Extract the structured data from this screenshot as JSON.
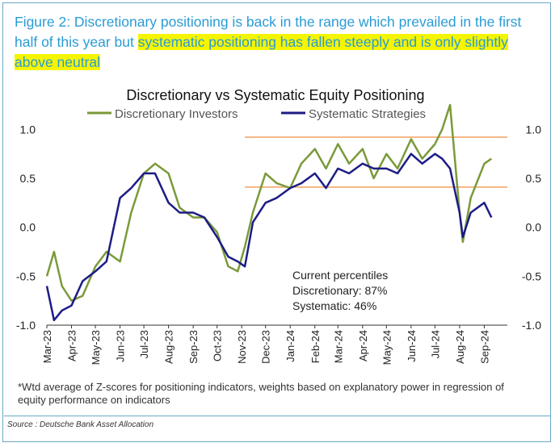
{
  "figure": {
    "heading_plain": "Figure 2: Discretionary positioning is back in the range which prevailed in the first half of this year but ",
    "heading_highlight": "systematic positioning has fallen steeply and is only slightly above neutral",
    "footnote": "*Wtd average of Z-scores for positioning indicators, weights based on explanatory power in regression of equity performance on indicators",
    "source": "Source : Deutsche Bank Asset Allocation"
  },
  "colors": {
    "discretionary": "#7a9a3a",
    "systematic": "#1c1c86",
    "range": "#f0a060",
    "heading": "#2a9bd5",
    "highlight": "#f5f500"
  },
  "chart_data": {
    "type": "line",
    "title": "Discretionary  vs Systematic Equity Positioning",
    "ylim": [
      -1.0,
      1.25
    ],
    "yticks": [
      "1.0",
      "0.5",
      "0.0",
      "-0.5",
      "-1.0"
    ],
    "ytick_values": [
      1.0,
      0.5,
      0.0,
      -0.5,
      -1.0
    ],
    "x_tick_labels": [
      "Mar-23",
      "Apr-23",
      "May-23",
      "Jun-23",
      "Jul-23",
      "Aug-23",
      "Sep-23",
      "Oct-23",
      "Nov-23",
      "Dec-23",
      "Jan-24",
      "Feb-24",
      "Mar-24",
      "Apr-24",
      "May-24",
      "Jun-24",
      "Jul-24",
      "Aug-24",
      "Sep-24"
    ],
    "legend_position": "top",
    "grid": false,
    "series": [
      {
        "name": "Discretionary Investors",
        "x": [
          "2023-03-01",
          "2023-03-10",
          "2023-03-20",
          "2023-04-01",
          "2023-04-15",
          "2023-05-01",
          "2023-05-15",
          "2023-06-01",
          "2023-06-15",
          "2023-07-01",
          "2023-07-15",
          "2023-08-01",
          "2023-08-15",
          "2023-09-01",
          "2023-09-15",
          "2023-10-01",
          "2023-10-15",
          "2023-10-27",
          "2023-11-05",
          "2023-11-15",
          "2023-12-01",
          "2023-12-15",
          "2024-01-01",
          "2024-01-15",
          "2024-02-01",
          "2024-02-15",
          "2024-03-01",
          "2024-03-15",
          "2024-04-01",
          "2024-04-15",
          "2024-05-01",
          "2024-05-15",
          "2024-06-01",
          "2024-06-15",
          "2024-07-01",
          "2024-07-10",
          "2024-07-20",
          "2024-08-01",
          "2024-08-05",
          "2024-08-15",
          "2024-09-01",
          "2024-09-10"
        ],
        "values": [
          -0.5,
          -0.25,
          -0.6,
          -0.75,
          -0.7,
          -0.4,
          -0.25,
          -0.35,
          0.15,
          0.55,
          0.65,
          0.55,
          0.2,
          0.1,
          0.1,
          -0.05,
          -0.4,
          -0.45,
          -0.2,
          0.15,
          0.55,
          0.45,
          0.4,
          0.65,
          0.8,
          0.6,
          0.85,
          0.65,
          0.8,
          0.5,
          0.75,
          0.6,
          0.9,
          0.7,
          0.85,
          1.0,
          1.25,
          0.15,
          -0.15,
          0.3,
          0.65,
          0.7
        ]
      },
      {
        "name": "Systematic Strategies",
        "x": [
          "2023-03-01",
          "2023-03-10",
          "2023-03-20",
          "2023-04-01",
          "2023-04-15",
          "2023-05-01",
          "2023-05-15",
          "2023-06-01",
          "2023-06-15",
          "2023-07-01",
          "2023-07-15",
          "2023-08-01",
          "2023-08-15",
          "2023-09-01",
          "2023-09-15",
          "2023-10-01",
          "2023-10-15",
          "2023-10-27",
          "2023-11-05",
          "2023-11-15",
          "2023-12-01",
          "2023-12-15",
          "2024-01-01",
          "2024-01-15",
          "2024-02-01",
          "2024-02-15",
          "2024-03-01",
          "2024-03-15",
          "2024-04-01",
          "2024-04-15",
          "2024-05-01",
          "2024-05-15",
          "2024-06-01",
          "2024-06-15",
          "2024-07-01",
          "2024-07-10",
          "2024-07-20",
          "2024-08-01",
          "2024-08-05",
          "2024-08-15",
          "2024-09-01",
          "2024-09-10"
        ],
        "values": [
          -0.6,
          -0.95,
          -0.85,
          -0.8,
          -0.55,
          -0.45,
          -0.35,
          0.3,
          0.4,
          0.55,
          0.55,
          0.25,
          0.15,
          0.15,
          0.1,
          -0.1,
          -0.3,
          -0.35,
          -0.4,
          0.05,
          0.25,
          0.3,
          0.4,
          0.45,
          0.55,
          0.4,
          0.6,
          0.55,
          0.65,
          0.6,
          0.6,
          0.55,
          0.75,
          0.65,
          0.75,
          0.7,
          0.6,
          0.15,
          -0.1,
          0.15,
          0.25,
          0.1
        ]
      }
    ],
    "reference_lines": [
      0.92,
      0.41
    ],
    "annotation": {
      "title": "Current percentiles",
      "line1": "Discretionary: 87%",
      "line2": "Systematic: 46%"
    }
  }
}
